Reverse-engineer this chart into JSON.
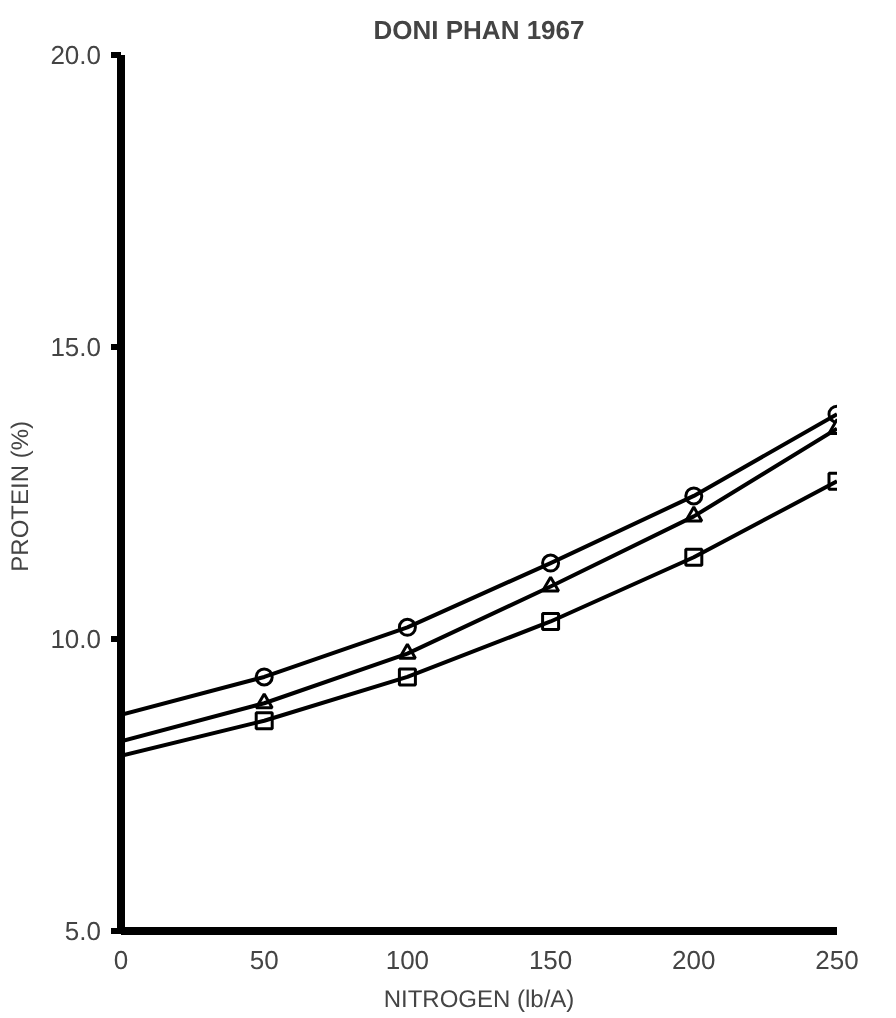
{
  "chart_data": {
    "type": "scatter",
    "title": "DONI PHAN 1967",
    "xlabel": "NITROGEN (lb/A)",
    "ylabel": "PROTEIN  (%)",
    "xlim": [
      0,
      250
    ],
    "ylim": [
      5,
      20
    ],
    "xticks": [
      0,
      50,
      100,
      150,
      200,
      250
    ],
    "yticks": [
      {
        "value": 5,
        "label": "5.0"
      },
      {
        "value": 10,
        "label": "10.0"
      },
      {
        "value": 15,
        "label": "15.0"
      },
      {
        "value": 20,
        "label": "20.0"
      }
    ],
    "grid": false,
    "series": [
      {
        "marker": "circle",
        "color": "#000000",
        "x": [
          50,
          100,
          150,
          200,
          250
        ],
        "values": [
          9.35,
          10.2,
          11.3,
          12.45,
          13.85
        ]
      },
      {
        "marker": "triangle",
        "color": "#000000",
        "x": [
          50,
          100,
          150,
          200,
          250
        ],
        "values": [
          8.9,
          9.75,
          10.9,
          12.1,
          13.6
        ]
      },
      {
        "marker": "square",
        "color": "#000000",
        "x": [
          50,
          100,
          150,
          200,
          250
        ],
        "values": [
          8.6,
          9.35,
          10.3,
          11.4,
          12.7
        ]
      },
      {
        "type": "line",
        "line_style": "solid",
        "color": "#000000",
        "x": [
          0,
          50,
          100,
          150,
          200,
          250
        ],
        "values": [
          8.7,
          9.35,
          10.2,
          11.3,
          12.45,
          13.85
        ]
      },
      {
        "type": "line",
        "line_style": "solid",
        "color": "#000000",
        "x": [
          0,
          50,
          100,
          150,
          200,
          250
        ],
        "values": [
          8.25,
          8.9,
          9.75,
          10.9,
          12.1,
          13.6
        ]
      },
      {
        "type": "line",
        "line_style": "solid",
        "color": "#000000",
        "x": [
          0,
          50,
          100,
          150,
          200,
          250
        ],
        "values": [
          8.0,
          8.6,
          9.35,
          10.3,
          11.4,
          12.7
        ]
      }
    ]
  }
}
